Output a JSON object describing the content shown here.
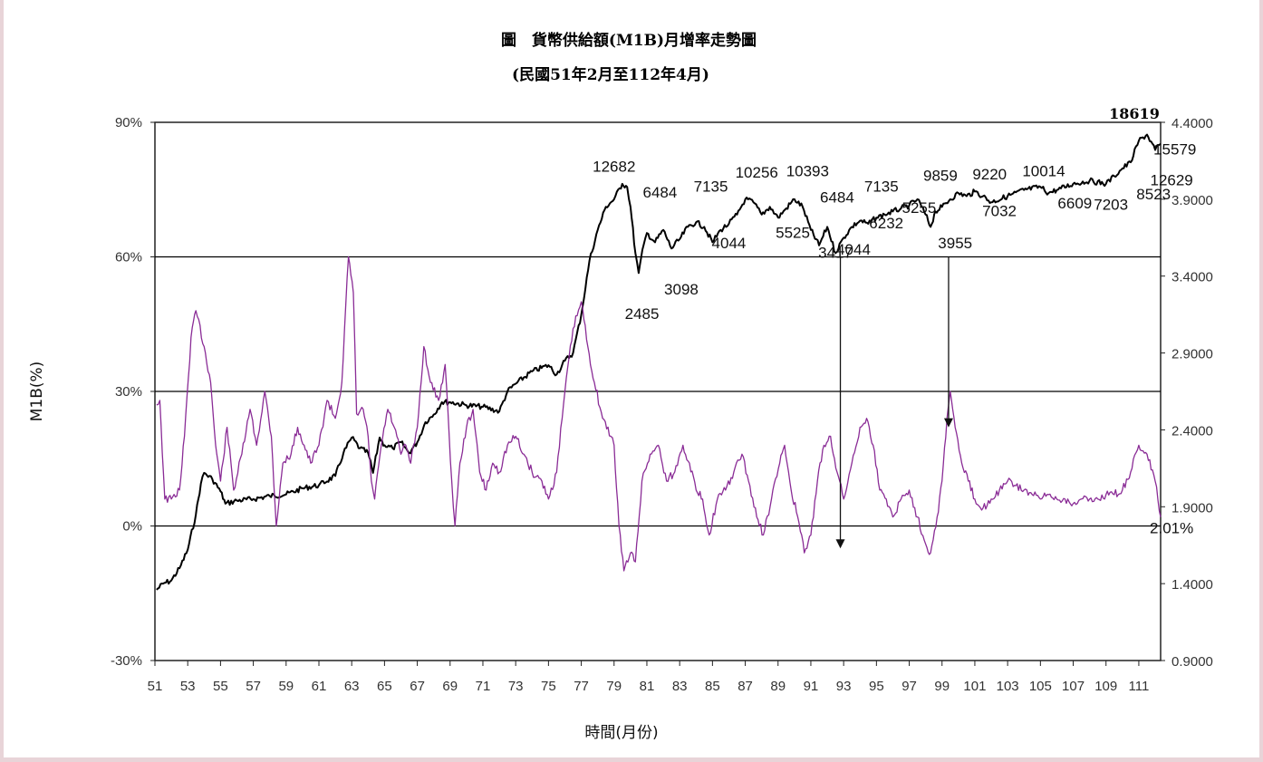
{
  "chart_data": {
    "type": "line",
    "title": "圖　貨幣供給額(M1B)月增率走勢圖",
    "subtitle": "(民國51年2月至112年4月)",
    "xlabel": "時間(月份)",
    "ylabel": "M1B(%)",
    "x_range": [
      51,
      112.33
    ],
    "x_ticks": [
      "51",
      "53",
      "55",
      "57",
      "59",
      "61",
      "63",
      "65",
      "67",
      "69",
      "71",
      "73",
      "75",
      "77",
      "79",
      "81",
      "83",
      "85",
      "87",
      "89",
      "91",
      "93",
      "95",
      "97",
      "99",
      "101",
      "103",
      "105",
      "107",
      "109",
      "111"
    ],
    "y_left": {
      "range": [
        -30,
        90
      ],
      "ticks": [
        "90%",
        "60%",
        "30%",
        "0%",
        "-30%"
      ]
    },
    "y_right": {
      "range": [
        0.9,
        4.4
      ],
      "ticks": [
        "4.4000",
        "3.9000",
        "3.4000",
        "2.9000",
        "2.4000",
        "1.9000",
        "1.4000",
        "0.9000"
      ]
    },
    "grid": "horizontal",
    "colors": {
      "index": "#000000",
      "m1b": "#8a2c96",
      "border": "#222222"
    },
    "series": [
      {
        "key": "index",
        "axis": "right",
        "color": "#000000",
        "points": [
          [
            51.1,
            1.36
          ],
          [
            51.5,
            1.4
          ],
          [
            52,
            1.42
          ],
          [
            52.5,
            1.5
          ],
          [
            53,
            1.62
          ],
          [
            53.5,
            1.85
          ],
          [
            53.8,
            2.05
          ],
          [
            54,
            2.12
          ],
          [
            54.5,
            2.08
          ],
          [
            55,
            2.0
          ],
          [
            55.3,
            1.92
          ],
          [
            56,
            1.94
          ],
          [
            57,
            1.95
          ],
          [
            58,
            1.97
          ],
          [
            59,
            1.98
          ],
          [
            60,
            2.02
          ],
          [
            61,
            2.04
          ],
          [
            62,
            2.1
          ],
          [
            62.5,
            2.25
          ],
          [
            63,
            2.35
          ],
          [
            63.5,
            2.28
          ],
          [
            64,
            2.25
          ],
          [
            64.3,
            2.12
          ],
          [
            64.7,
            2.35
          ],
          [
            65,
            2.3
          ],
          [
            65.5,
            2.28
          ],
          [
            66,
            2.32
          ],
          [
            66.5,
            2.25
          ],
          [
            67,
            2.32
          ],
          [
            67.5,
            2.45
          ],
          [
            68,
            2.5
          ],
          [
            68.5,
            2.58
          ],
          [
            69,
            2.58
          ],
          [
            70,
            2.56
          ],
          [
            71,
            2.55
          ],
          [
            72,
            2.52
          ],
          [
            72.5,
            2.65
          ],
          [
            73,
            2.7
          ],
          [
            74,
            2.78
          ],
          [
            75,
            2.82
          ],
          [
            75.5,
            2.76
          ],
          [
            76,
            2.85
          ],
          [
            76.5,
            2.9
          ],
          [
            77,
            3.15
          ],
          [
            77.5,
            3.5
          ],
          [
            78,
            3.7
          ],
          [
            78.5,
            3.85
          ],
          [
            79,
            3.9
          ],
          [
            79.5,
            4.0
          ],
          [
            79.8,
            3.98
          ],
          [
            80,
            3.85
          ],
          [
            80.3,
            3.55
          ],
          [
            80.5,
            3.42
          ],
          [
            80.8,
            3.6
          ],
          [
            81,
            3.68
          ],
          [
            81.5,
            3.62
          ],
          [
            82,
            3.7
          ],
          [
            82.5,
            3.58
          ],
          [
            83,
            3.64
          ],
          [
            83.5,
            3.72
          ],
          [
            84,
            3.75
          ],
          [
            84.5,
            3.72
          ],
          [
            85,
            3.62
          ],
          [
            85.5,
            3.7
          ],
          [
            86,
            3.74
          ],
          [
            86.5,
            3.8
          ],
          [
            87,
            3.9
          ],
          [
            87.5,
            3.88
          ],
          [
            88,
            3.8
          ],
          [
            88.5,
            3.85
          ],
          [
            89,
            3.78
          ],
          [
            89.5,
            3.84
          ],
          [
            90,
            3.9
          ],
          [
            90.5,
            3.85
          ],
          [
            91,
            3.7
          ],
          [
            91.5,
            3.6
          ],
          [
            92,
            3.72
          ],
          [
            92.5,
            3.55
          ],
          [
            93,
            3.65
          ],
          [
            93.5,
            3.72
          ],
          [
            94,
            3.76
          ],
          [
            94.5,
            3.74
          ],
          [
            95,
            3.78
          ],
          [
            95.5,
            3.8
          ],
          [
            96,
            3.82
          ],
          [
            96.5,
            3.84
          ],
          [
            97,
            3.86
          ],
          [
            97.5,
            3.9
          ],
          [
            98,
            3.8
          ],
          [
            98.3,
            3.72
          ],
          [
            98.6,
            3.82
          ],
          [
            99,
            3.85
          ],
          [
            99.5,
            3.9
          ],
          [
            100,
            3.94
          ],
          [
            100.5,
            3.92
          ],
          [
            101,
            3.95
          ],
          [
            101.5,
            3.92
          ],
          [
            102,
            3.88
          ],
          [
            103,
            3.92
          ],
          [
            104,
            3.96
          ],
          [
            105,
            3.98
          ],
          [
            105.5,
            3.94
          ],
          [
            106,
            3.96
          ],
          [
            107,
            4.0
          ],
          [
            108,
            4.02
          ],
          [
            109,
            4.0
          ],
          [
            109.5,
            4.05
          ],
          [
            110,
            4.1
          ],
          [
            110.5,
            4.14
          ],
          [
            111,
            4.28
          ],
          [
            111.5,
            4.32
          ],
          [
            112,
            4.22
          ],
          [
            112.33,
            4.26
          ]
        ]
      },
      {
        "key": "m1b",
        "axis": "left",
        "color": "#8a2c96",
        "points": [
          [
            51.1,
            27
          ],
          [
            51.3,
            28
          ],
          [
            51.6,
            6
          ],
          [
            52,
            6
          ],
          [
            52.5,
            8
          ],
          [
            52.8,
            20
          ],
          [
            53.2,
            42
          ],
          [
            53.5,
            48
          ],
          [
            54,
            40
          ],
          [
            54.4,
            32
          ],
          [
            54.7,
            18
          ],
          [
            55,
            10
          ],
          [
            55.4,
            22
          ],
          [
            55.8,
            8
          ],
          [
            56.3,
            16
          ],
          [
            56.8,
            26
          ],
          [
            57.2,
            18
          ],
          [
            57.7,
            30
          ],
          [
            58.1,
            20
          ],
          [
            58.4,
            0
          ],
          [
            58.8,
            14
          ],
          [
            59.3,
            16
          ],
          [
            59.7,
            22
          ],
          [
            60.1,
            18
          ],
          [
            60.5,
            14
          ],
          [
            61,
            18
          ],
          [
            61.5,
            28
          ],
          [
            62,
            24
          ],
          [
            62.4,
            32
          ],
          [
            62.8,
            60
          ],
          [
            63.1,
            52
          ],
          [
            63.3,
            25
          ],
          [
            63.7,
            26
          ],
          [
            64,
            20
          ],
          [
            64.2,
            10
          ],
          [
            64.4,
            6
          ],
          [
            64.8,
            18
          ],
          [
            65.2,
            26
          ],
          [
            65.6,
            22
          ],
          [
            66,
            16
          ],
          [
            66.3,
            18
          ],
          [
            66.6,
            14
          ],
          [
            67,
            22
          ],
          [
            67.4,
            40
          ],
          [
            67.8,
            32
          ],
          [
            68.3,
            28
          ],
          [
            68.7,
            36
          ],
          [
            69.1,
            10
          ],
          [
            69.3,
            0
          ],
          [
            69.6,
            14
          ],
          [
            70,
            22
          ],
          [
            70.4,
            26
          ],
          [
            70.8,
            12
          ],
          [
            71.2,
            8
          ],
          [
            71.6,
            14
          ],
          [
            72,
            12
          ],
          [
            72.5,
            18
          ],
          [
            73,
            20
          ],
          [
            73.5,
            16
          ],
          [
            74,
            12
          ],
          [
            74.6,
            10
          ],
          [
            75,
            6
          ],
          [
            75.5,
            12
          ],
          [
            76,
            30
          ],
          [
            76.5,
            44
          ],
          [
            77,
            50
          ],
          [
            77.4,
            40
          ],
          [
            77.8,
            32
          ],
          [
            78.3,
            24
          ],
          [
            78.8,
            20
          ],
          [
            79,
            18
          ],
          [
            79.3,
            0
          ],
          [
            79.6,
            -10
          ],
          [
            80,
            -6
          ],
          [
            80.3,
            -8
          ],
          [
            80.7,
            10
          ],
          [
            81.2,
            16
          ],
          [
            81.7,
            18
          ],
          [
            82.2,
            10
          ],
          [
            82.7,
            12
          ],
          [
            83.2,
            18
          ],
          [
            83.6,
            14
          ],
          [
            84,
            8
          ],
          [
            84.4,
            6
          ],
          [
            84.8,
            -2
          ],
          [
            85.3,
            6
          ],
          [
            85.8,
            8
          ],
          [
            86.3,
            12
          ],
          [
            86.8,
            16
          ],
          [
            87.2,
            10
          ],
          [
            87.7,
            2
          ],
          [
            88.1,
            -2
          ],
          [
            88.6,
            6
          ],
          [
            89.1,
            14
          ],
          [
            89.4,
            18
          ],
          [
            89.8,
            8
          ],
          [
            90.2,
            2
          ],
          [
            90.6,
            -6
          ],
          [
            91,
            -2
          ],
          [
            91.4,
            10
          ],
          [
            91.8,
            18
          ],
          [
            92.2,
            20
          ],
          [
            92.6,
            12
          ],
          [
            93,
            6
          ],
          [
            93.5,
            14
          ],
          [
            94,
            22
          ],
          [
            94.4,
            24
          ],
          [
            94.8,
            18
          ],
          [
            95.2,
            8
          ],
          [
            95.6,
            6
          ],
          [
            96,
            2
          ],
          [
            96.5,
            6
          ],
          [
            97,
            8
          ],
          [
            97.5,
            2
          ],
          [
            98,
            -4
          ],
          [
            98.3,
            -6
          ],
          [
            98.7,
            2
          ],
          [
            99,
            10
          ],
          [
            99.3,
            24
          ],
          [
            99.5,
            30
          ],
          [
            99.8,
            22
          ],
          [
            100.2,
            14
          ],
          [
            100.6,
            10
          ],
          [
            101,
            6
          ],
          [
            101.5,
            4
          ],
          [
            102,
            6
          ],
          [
            102.5,
            8
          ],
          [
            103,
            10
          ],
          [
            103.5,
            9
          ],
          [
            104,
            8
          ],
          [
            104.5,
            7
          ],
          [
            105,
            6
          ],
          [
            105.5,
            7
          ],
          [
            106,
            6
          ],
          [
            106.5,
            6
          ],
          [
            107,
            5
          ],
          [
            107.5,
            6
          ],
          [
            108,
            6
          ],
          [
            108.5,
            6
          ],
          [
            109,
            7
          ],
          [
            109.5,
            7
          ],
          [
            110,
            8
          ],
          [
            110.5,
            12
          ],
          [
            111,
            18
          ],
          [
            111.5,
            16
          ],
          [
            112,
            10
          ],
          [
            112.33,
            2
          ]
        ]
      }
    ],
    "annotations": [
      {
        "text": "12682",
        "x": 79.0,
        "v": 4.08,
        "axis": "right"
      },
      {
        "text": "6484",
        "x": 81.8,
        "v": 3.91,
        "axis": "right"
      },
      {
        "text": "7135",
        "x": 84.9,
        "v": 3.95,
        "axis": "right"
      },
      {
        "text": "10256",
        "x": 87.7,
        "v": 4.04,
        "axis": "right"
      },
      {
        "text": "10393",
        "x": 90.8,
        "v": 4.05,
        "axis": "right"
      },
      {
        "text": "6484",
        "x": 92.6,
        "v": 3.88,
        "axis": "right"
      },
      {
        "text": "7135",
        "x": 95.3,
        "v": 3.95,
        "axis": "right"
      },
      {
        "text": "9859",
        "x": 98.9,
        "v": 4.02,
        "axis": "right"
      },
      {
        "text": "9220",
        "x": 101.9,
        "v": 4.03,
        "axis": "right"
      },
      {
        "text": "10014",
        "x": 105.2,
        "v": 4.05,
        "axis": "right"
      },
      {
        "text": "15579",
        "x": 113.2,
        "v": 4.19,
        "axis": "right"
      },
      {
        "text": "12629",
        "x": 113.0,
        "v": 3.99,
        "axis": "right"
      },
      {
        "text": "5255",
        "x": 97.6,
        "v": 3.81,
        "axis": "right"
      },
      {
        "text": "7032",
        "x": 102.5,
        "v": 3.79,
        "axis": "right"
      },
      {
        "text": "6609",
        "x": 107.1,
        "v": 3.84,
        "axis": "right"
      },
      {
        "text": "7203",
        "x": 109.3,
        "v": 3.83,
        "axis": "right"
      },
      {
        "text": "8523",
        "x": 111.9,
        "v": 3.9,
        "axis": "right"
      },
      {
        "text": "6232",
        "x": 95.6,
        "v": 3.71,
        "axis": "right"
      },
      {
        "text": "4044",
        "x": 86.0,
        "v": 3.58,
        "axis": "right"
      },
      {
        "text": "5525",
        "x": 89.9,
        "v": 3.65,
        "axis": "right"
      },
      {
        "text": "3098",
        "x": 83.1,
        "v": 3.28,
        "axis": "right"
      },
      {
        "text": "2485",
        "x": 80.7,
        "v": 3.12,
        "axis": "right"
      },
      {
        "text": "3417",
        "x": 92.5,
        "v": 3.52,
        "axis": "right"
      },
      {
        "text": "4044",
        "x": 93.6,
        "v": 3.54,
        "axis": "right"
      },
      {
        "text": "3955",
        "x": 99.8,
        "v": 3.58,
        "axis": "right"
      },
      {
        "text": "2.01%",
        "x": 113.0,
        "v": 1.4,
        "axis": "left",
        "pct": true
      }
    ],
    "top_label": "18619",
    "arrows": [
      {
        "x": 92.8,
        "from": 60,
        "to": -5
      },
      {
        "x": 99.4,
        "from": 60,
        "to": 22
      }
    ]
  }
}
